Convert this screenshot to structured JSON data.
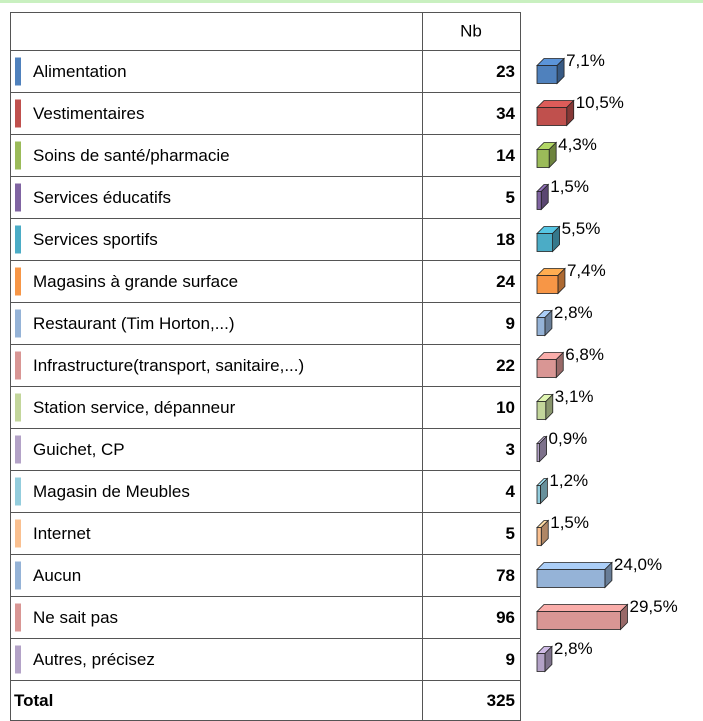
{
  "table": {
    "header": "Nb",
    "rows": [
      {
        "label": "Alimentation",
        "count": 23,
        "percent": 7.1,
        "percent_label": "7,1%",
        "color": "#4f81bd"
      },
      {
        "label": "Vestimentaires",
        "count": 34,
        "percent": 10.5,
        "percent_label": "10,5%",
        "color": "#c0504d"
      },
      {
        "label": "Soins de santé/pharmacie",
        "count": 14,
        "percent": 4.3,
        "percent_label": "4,3%",
        "color": "#9bbb59"
      },
      {
        "label": "Services éducatifs",
        "count": 5,
        "percent": 1.5,
        "percent_label": "1,5%",
        "color": "#8064a2"
      },
      {
        "label": "Services sportifs",
        "count": 18,
        "percent": 5.5,
        "percent_label": "5,5%",
        "color": "#4bacc6"
      },
      {
        "label": "Magasins à grande surface",
        "count": 24,
        "percent": 7.4,
        "percent_label": "7,4%",
        "color": "#f79646"
      },
      {
        "label": "Restaurant (Tim Horton,...)",
        "count": 9,
        "percent": 2.8,
        "percent_label": "2,8%",
        "color": "#95b3d7"
      },
      {
        "label": "Infrastructure(transport, sanitaire,...)",
        "count": 22,
        "percent": 6.8,
        "percent_label": "6,8%",
        "color": "#d99694"
      },
      {
        "label": "Station service, dépanneur",
        "count": 10,
        "percent": 3.1,
        "percent_label": "3,1%",
        "color": "#c3d69b"
      },
      {
        "label": "Guichet, CP",
        "count": 3,
        "percent": 0.9,
        "percent_label": "0,9%",
        "color": "#b3a2c7"
      },
      {
        "label": "Magasin de Meubles",
        "count": 4,
        "percent": 1.2,
        "percent_label": "1,2%",
        "color": "#93cddd"
      },
      {
        "label": "Internet",
        "count": 5,
        "percent": 1.5,
        "percent_label": "1,5%",
        "color": "#fac090"
      },
      {
        "label": "Aucun",
        "count": 78,
        "percent": 24.0,
        "percent_label": "24,0%",
        "color": "#95b3d7"
      },
      {
        "label": "Ne sait pas",
        "count": 96,
        "percent": 29.5,
        "percent_label": "29,5%",
        "color": "#d99694"
      },
      {
        "label": "Autres, précisez",
        "count": 9,
        "percent": 2.8,
        "percent_label": "2,8%",
        "color": "#b3a2c7"
      }
    ],
    "total": {
      "label": "Total",
      "count": 325
    }
  }
}
